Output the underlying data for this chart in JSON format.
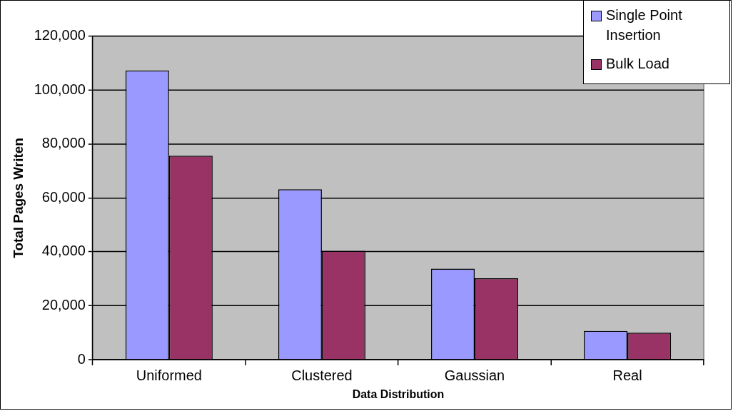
{
  "chart_data": {
    "type": "bar",
    "xlabel": "Data Distribution",
    "ylabel": "Total Pages Writen",
    "categories": [
      "Uniformed",
      "Clustered",
      "Gaussian",
      "Real"
    ],
    "series": [
      {
        "name": "Single Point Insertion",
        "color": "#9999ff",
        "values": [
          107300,
          63200,
          33800,
          10700
        ]
      },
      {
        "name": "Bulk Load",
        "color": "#993366",
        "values": [
          75700,
          40400,
          30200,
          10000
        ]
      }
    ],
    "ylim": [
      0,
      120000
    ],
    "yticks": [
      {
        "value": 0,
        "label": "0"
      },
      {
        "value": 20000,
        "label": "20,000"
      },
      {
        "value": 40000,
        "label": "40,000"
      },
      {
        "value": 60000,
        "label": "60,000"
      },
      {
        "value": 80000,
        "label": "80,000"
      },
      {
        "value": 100000,
        "label": "100,000"
      },
      {
        "value": 120000,
        "label": "120,000"
      }
    ],
    "grid": "y",
    "legend": "top right"
  }
}
